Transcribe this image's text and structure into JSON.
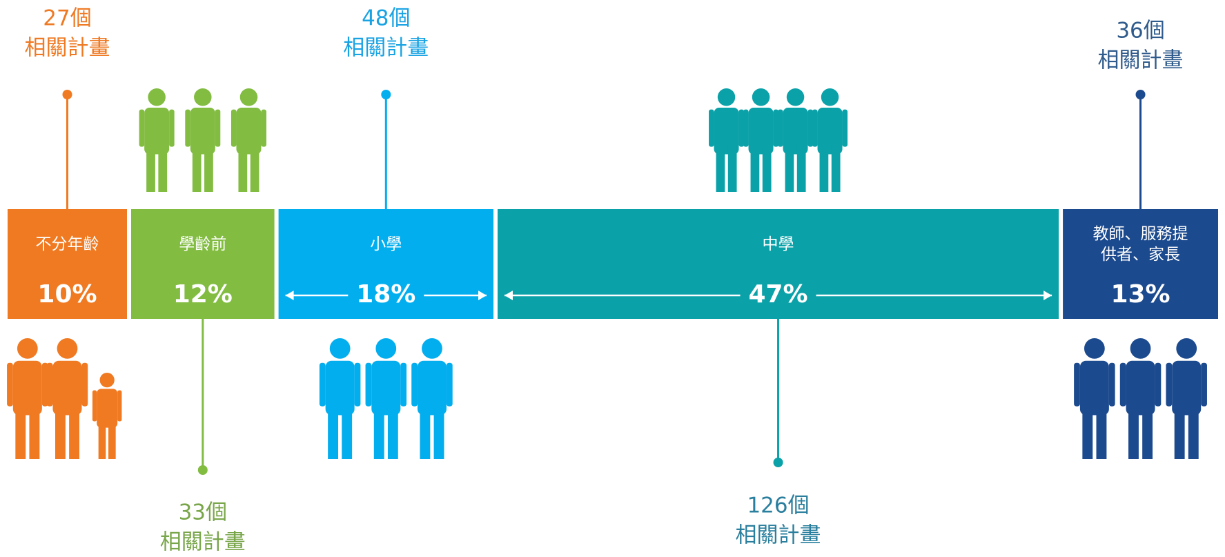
{
  "chart_data": {
    "type": "segmented-bar",
    "categories": [
      "不分年齡",
      "學齡前",
      "小學",
      "中學",
      "教師、服務提供者、家長"
    ],
    "values": [
      10,
      12,
      18,
      47,
      13
    ],
    "value_labels": [
      "10%",
      "12%",
      "18%",
      "47%",
      "13%"
    ],
    "colors": [
      "#f07a22",
      "#82bc41",
      "#03aeef",
      "#0aa1a8",
      "#1c4a8e"
    ],
    "counts": [
      27,
      33,
      48,
      126,
      36
    ],
    "count_labels": [
      "27個",
      "33個",
      "48個",
      "126個",
      "36個"
    ],
    "count_caption": "相關計畫",
    "count_colors": [
      "#ee7a24",
      "#79a64a",
      "#1aa3e3",
      "#2a7f9e",
      "#2f5b8c"
    ]
  }
}
